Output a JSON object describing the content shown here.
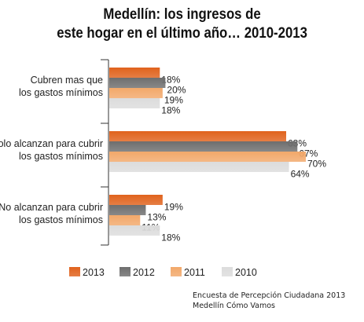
{
  "title_line1": "Medellín: los ingresos de",
  "title_line2": "este hogar en el último año… 2010-2013",
  "source_line1": "Encuesta de Percepción Ciudadana 2013",
  "source_line2": "Medellín Cómo Vamos",
  "chart_data": {
    "type": "bar",
    "orientation": "horizontal",
    "categories": [
      [
        "Cubren mas que",
        "los gastos mínimos"
      ],
      [
        "Solo alcanzan para cubrir",
        "los gastos mínimos"
      ],
      [
        "No alcanzan para cubrir",
        "los gastos mínimos"
      ]
    ],
    "series": [
      {
        "name": "2013",
        "values": [
          18,
          63,
          19
        ],
        "color": "#e0621c"
      },
      {
        "name": "2012",
        "values": [
          20,
          67,
          13
        ],
        "color": "#6e6e6e"
      },
      {
        "name": "2011",
        "values": [
          19,
          70,
          11
        ],
        "color": "#f2a86a"
      },
      {
        "name": "2010",
        "values": [
          18,
          64,
          18
        ],
        "color": "#dcdcdc"
      }
    ],
    "value_suffix": "%",
    "xlim": [
      0,
      70
    ],
    "grid": false,
    "legend_position": "bottom"
  }
}
